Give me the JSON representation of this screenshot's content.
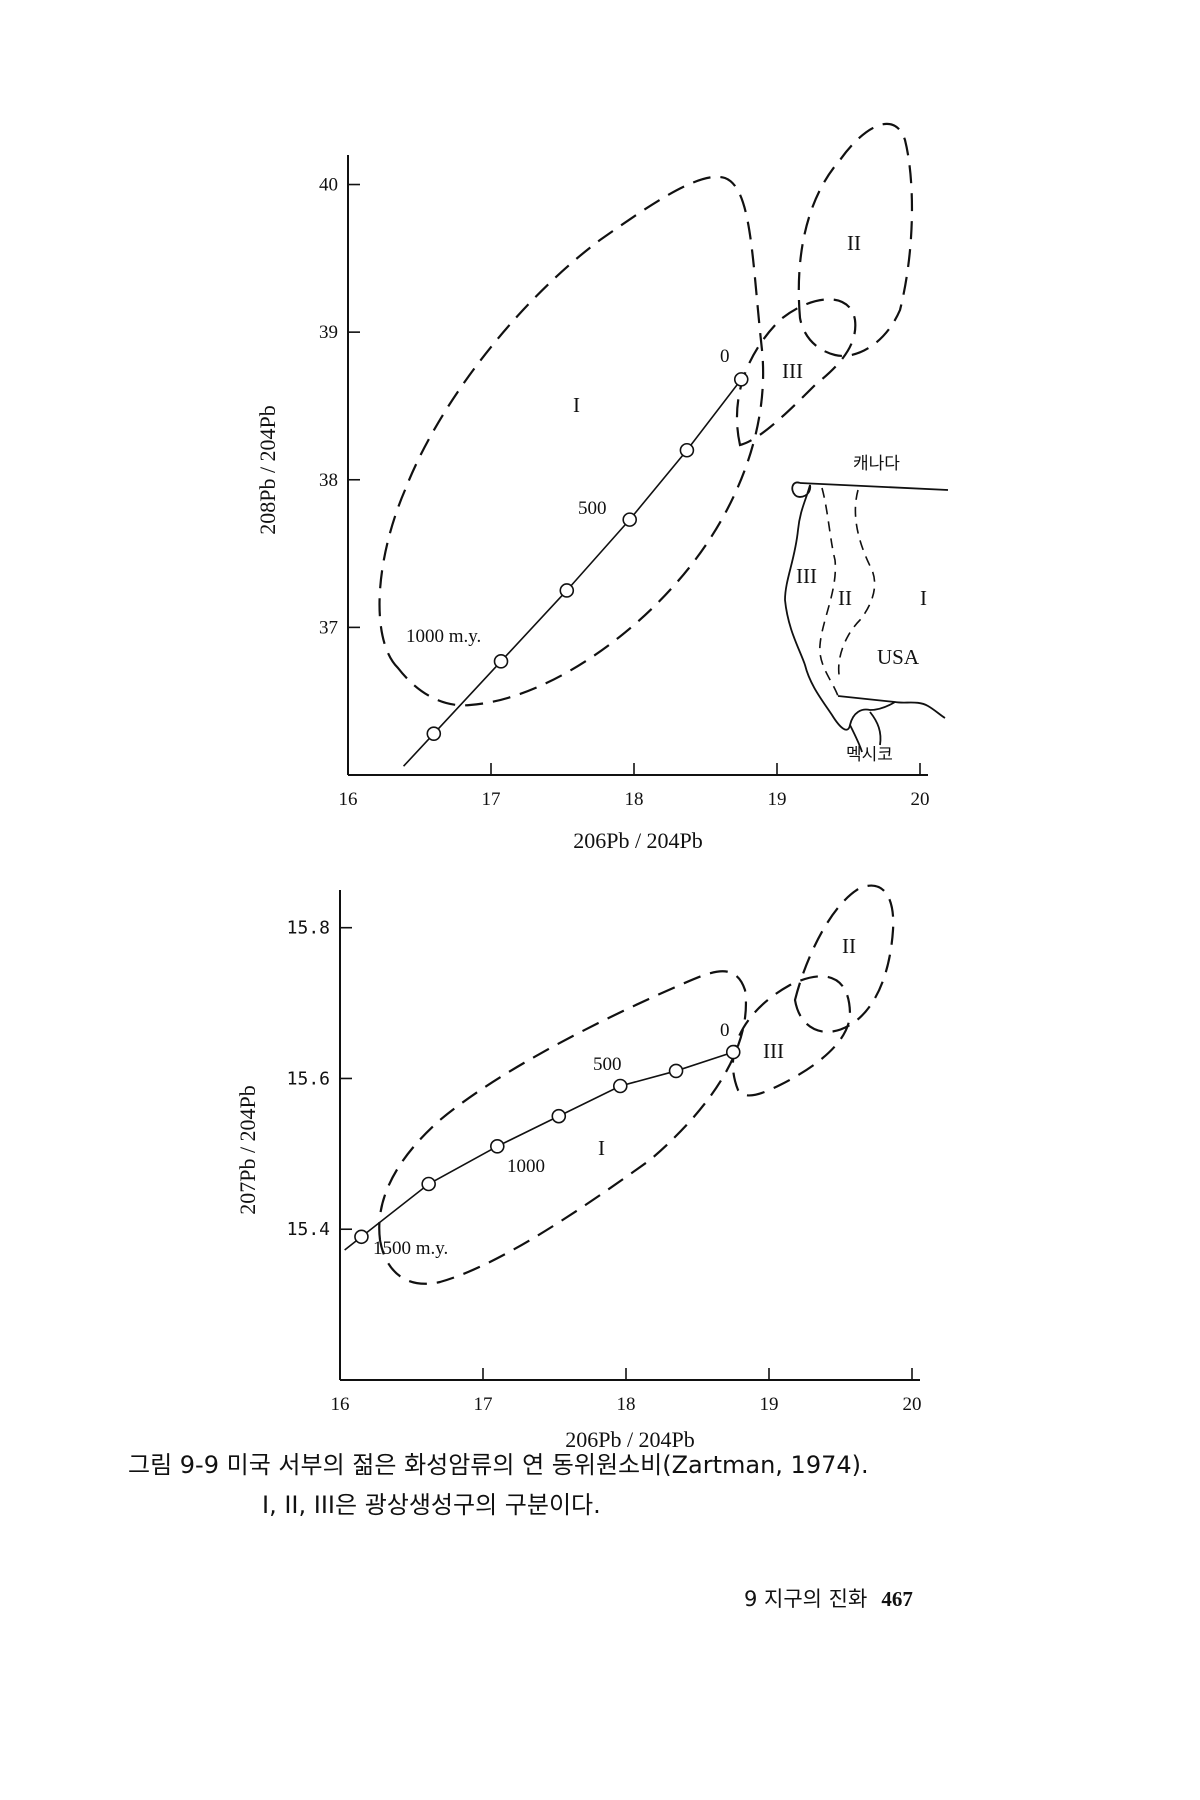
{
  "chart_data": [
    {
      "type": "line",
      "title": "",
      "xlabel": "206Pb / 204Pb",
      "ylabel": "208Pb / 204Pb",
      "xlim": [
        16,
        20
      ],
      "ylim": [
        36.0,
        40.2
      ],
      "xticks": [
        "16",
        "17",
        "18",
        "19",
        "20"
      ],
      "yticks": [
        "37",
        "38",
        "39",
        "40"
      ],
      "series": [
        {
          "values": [
            [
              16.6,
              36.28
            ],
            [
              17.07,
              36.77
            ],
            [
              17.53,
              37.25
            ],
            [
              17.97,
              37.73
            ],
            [
              18.37,
              38.2
            ],
            [
              18.75,
              38.68
            ]
          ]
        }
      ],
      "annotations": [
        "0",
        "500",
        "1000 m.y."
      ],
      "regions": [
        "I",
        "II",
        "III"
      ],
      "inset_map": {
        "labels": [
          "캐나다",
          "III",
          "II",
          "I",
          "USA",
          "멕시코"
        ]
      },
      "grid": false
    },
    {
      "type": "line",
      "title": "",
      "xlabel": "206Pb / 204Pb",
      "ylabel": "207Pb / 204Pb",
      "xlim": [
        16,
        20
      ],
      "ylim": [
        15.2,
        15.85
      ],
      "xticks": [
        "16",
        "17",
        "18",
        "19",
        "20"
      ],
      "yticks": [
        "15.4",
        "15.6",
        "15.8"
      ],
      "series": [
        {
          "values": [
            [
              16.15,
              15.39
            ],
            [
              16.62,
              15.46
            ],
            [
              17.1,
              15.51
            ],
            [
              17.53,
              15.55
            ],
            [
              17.96,
              15.59
            ],
            [
              18.35,
              15.61
            ],
            [
              18.75,
              15.635
            ]
          ]
        }
      ],
      "annotations": [
        "0",
        "500",
        "1000",
        "1500 m.y."
      ],
      "regions": [
        "I",
        "II",
        "III"
      ],
      "grid": false
    }
  ],
  "caption": {
    "line1": "그림 9-9  미국 서부의 젊은 화성암류의 연 동위원소비(Zartman, 1974).",
    "line2": "I, II, III은 광상생성구의 구분이다."
  },
  "footer": {
    "chapter": "9  지구의 진화",
    "page": "467"
  }
}
